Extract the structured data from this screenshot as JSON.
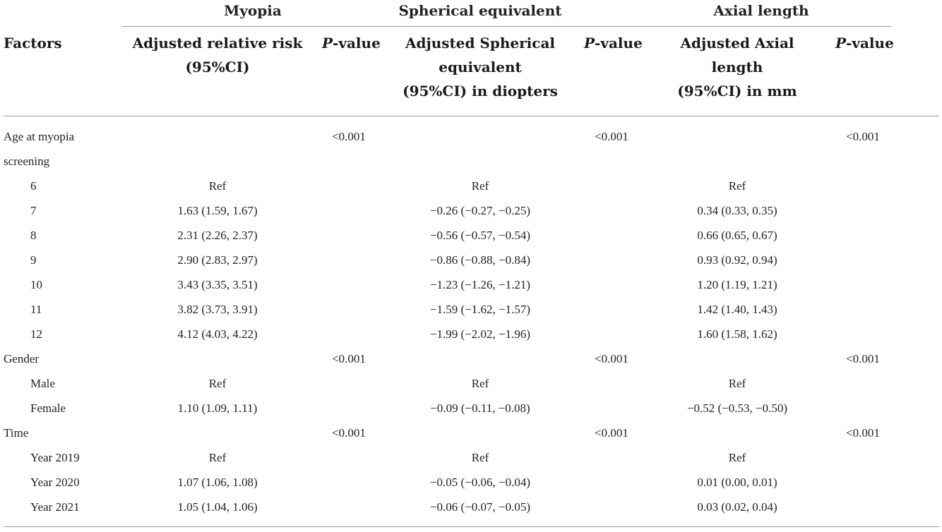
{
  "groups": {
    "myopia": "Myopia",
    "se": "Spherical equivalent",
    "axial": "Axial length"
  },
  "headers": {
    "factors": "Factors",
    "rr_line1": "Adjusted relative risk",
    "rr_line2": "(95%CI)",
    "p_italic": "P",
    "p_rest": "-value",
    "se_line1": "Adjusted Spherical",
    "se_line2": "equivalent",
    "se_line3": "(95%CI) in diopters",
    "al_line1": "Adjusted Axial length",
    "al_line2": "(95%CI) in mm"
  },
  "rows": [
    {
      "factor": "Age at myopia",
      "indent": false,
      "rr": "",
      "p1": "<0.001",
      "se": "",
      "p2": "<0.001",
      "al": "",
      "p3": "<0.001"
    },
    {
      "factor": "screening",
      "indent": false,
      "rr": "",
      "p1": "",
      "se": "",
      "p2": "",
      "al": "",
      "p3": ""
    },
    {
      "factor": "6",
      "indent": true,
      "rr": "Ref",
      "p1": "",
      "se": "Ref",
      "p2": "",
      "al": "Ref",
      "p3": ""
    },
    {
      "factor": "7",
      "indent": true,
      "rr": "1.63 (1.59, 1.67)",
      "p1": "",
      "se": "−0.26 (−0.27, −0.25)",
      "p2": "",
      "al": "0.34 (0.33, 0.35)",
      "p3": ""
    },
    {
      "factor": "8",
      "indent": true,
      "rr": "2.31 (2.26, 2.37)",
      "p1": "",
      "se": "−0.56 (−0.57, −0.54)",
      "p2": "",
      "al": "0.66 (0.65, 0.67)",
      "p3": ""
    },
    {
      "factor": "9",
      "indent": true,
      "rr": "2.90 (2.83, 2.97)",
      "p1": "",
      "se": "−0.86 (−0.88, −0.84)",
      "p2": "",
      "al": "0.93 (0.92, 0.94)",
      "p3": ""
    },
    {
      "factor": "10",
      "indent": true,
      "rr": "3.43 (3.35, 3.51)",
      "p1": "",
      "se": "−1.23 (−1.26, −1.21)",
      "p2": "",
      "al": "1.20 (1.19, 1.21)",
      "p3": ""
    },
    {
      "factor": "11",
      "indent": true,
      "rr": "3.82 (3.73, 3.91)",
      "p1": "",
      "se": "−1.59 (−1.62, −1.57)",
      "p2": "",
      "al": "1.42 (1.40, 1.43)",
      "p3": ""
    },
    {
      "factor": "12",
      "indent": true,
      "rr": "4.12 (4.03, 4.22)",
      "p1": "",
      "se": "−1.99 (−2.02, −1.96)",
      "p2": "",
      "al": "1.60 (1.58, 1.62)",
      "p3": ""
    },
    {
      "factor": "Gender",
      "indent": false,
      "rr": "",
      "p1": "<0.001",
      "se": "",
      "p2": "<0.001",
      "al": "",
      "p3": "<0.001"
    },
    {
      "factor": "Male",
      "indent": true,
      "rr": "Ref",
      "p1": "",
      "se": "Ref",
      "p2": "",
      "al": "Ref",
      "p3": ""
    },
    {
      "factor": "Female",
      "indent": true,
      "rr": "1.10 (1.09, 1.11)",
      "p1": "",
      "se": "−0.09 (−0.11, −0.08)",
      "p2": "",
      "al": "−0.52 (−0.53, −0.50)",
      "p3": ""
    },
    {
      "factor": "Time",
      "indent": false,
      "rr": "",
      "p1": "<0.001",
      "se": "",
      "p2": "<0.001",
      "al": "",
      "p3": "<0.001"
    },
    {
      "factor": "Year 2019",
      "indent": true,
      "rr": "Ref",
      "p1": "",
      "se": "Ref",
      "p2": "",
      "al": "Ref",
      "p3": ""
    },
    {
      "factor": "Year 2020",
      "indent": true,
      "rr": "1.07 (1.06, 1.08)",
      "p1": "",
      "se": "−0.05 (−0.06, −0.04)",
      "p2": "",
      "al": "0.01 (0.00, 0.01)",
      "p3": ""
    },
    {
      "factor": "Year 2021",
      "indent": true,
      "rr": "1.05 (1.04, 1.06)",
      "p1": "",
      "se": "−0.06 (−0.07, −0.05)",
      "p2": "",
      "al": "0.03 (0.02, 0.04)",
      "p3": ""
    }
  ]
}
